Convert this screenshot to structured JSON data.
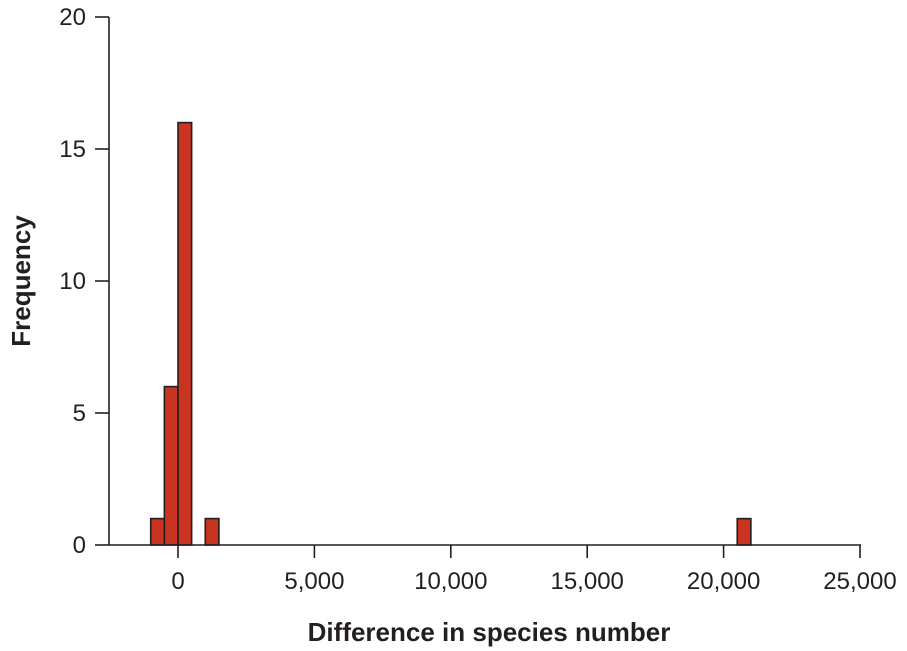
{
  "chart_data": {
    "type": "bar",
    "title": "",
    "xlabel": "Difference in species number",
    "ylabel": "Frequency",
    "xlim": [
      -2500,
      25000
    ],
    "ylim": [
      0,
      20
    ],
    "x_ticks": [
      0,
      5000,
      10000,
      15000,
      20000,
      25000
    ],
    "x_tick_labels": [
      "0",
      "5,000",
      "10,000",
      "15,000",
      "20,000",
      "25,000"
    ],
    "y_ticks": [
      0,
      5,
      10,
      15,
      20
    ],
    "y_tick_labels": [
      "0",
      "5",
      "10",
      "15",
      "20"
    ],
    "bin_width": 500,
    "bins": [
      {
        "x0": -1000,
        "x1": -500,
        "count": 1
      },
      {
        "x0": -500,
        "x1": 0,
        "count": 6
      },
      {
        "x0": 0,
        "x1": 500,
        "count": 16
      },
      {
        "x0": 1000,
        "x1": 1500,
        "count": 1
      },
      {
        "x0": 20500,
        "x1": 21000,
        "count": 1
      }
    ],
    "bar_color": "#c8341f",
    "grid": false,
    "legend": "none"
  }
}
